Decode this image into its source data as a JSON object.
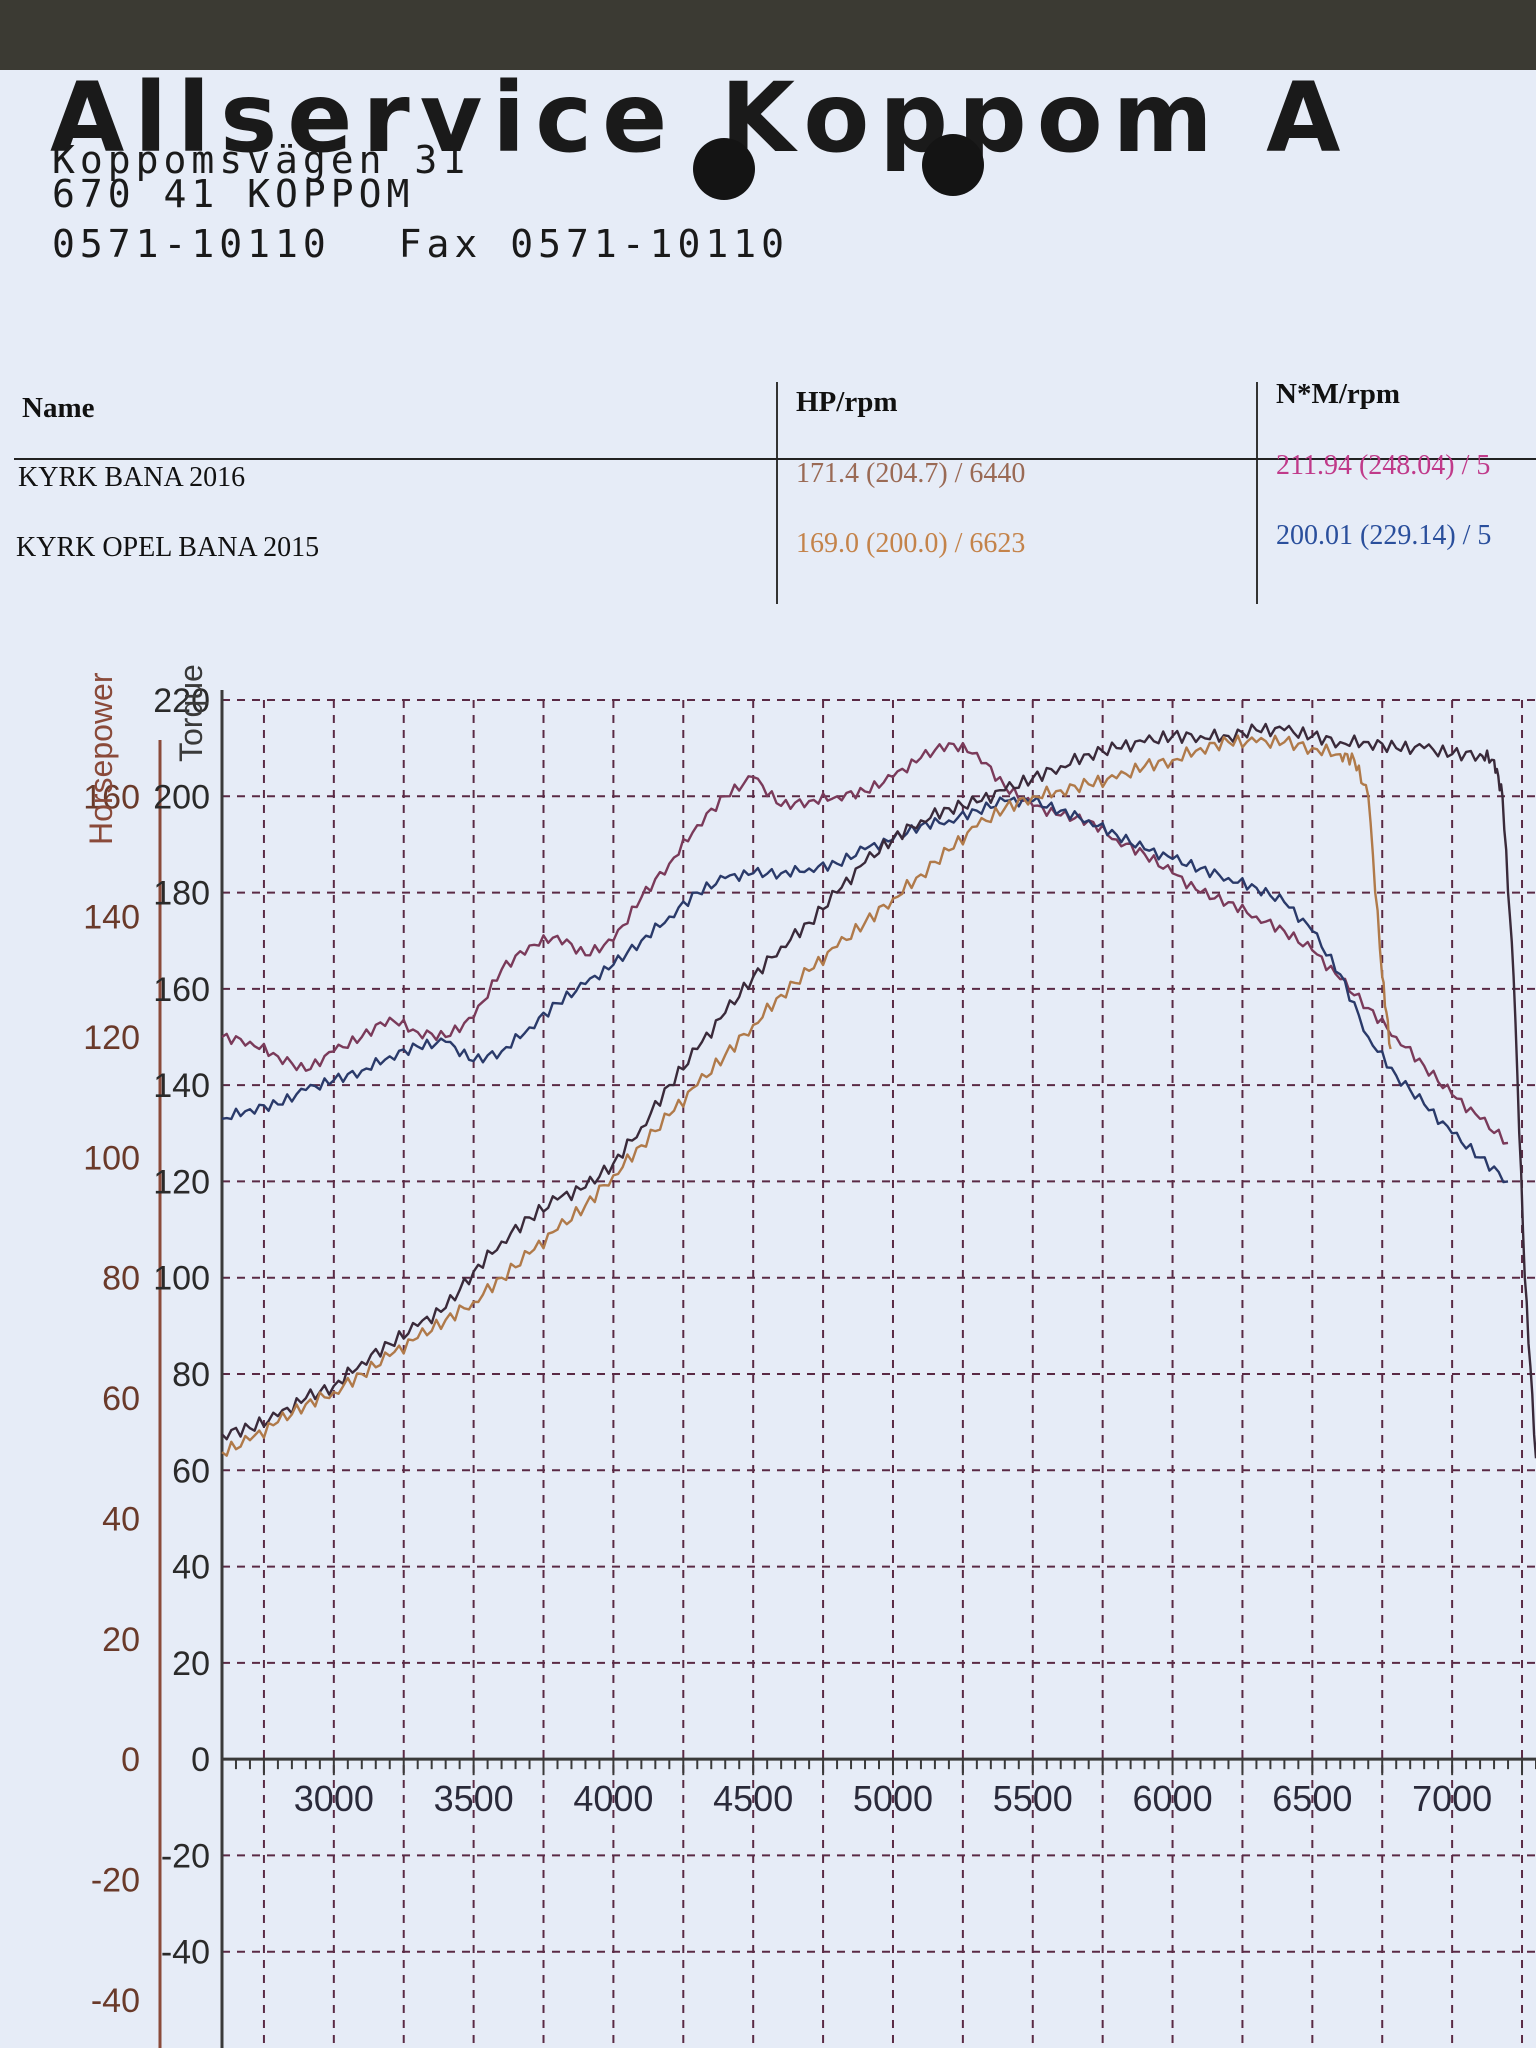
{
  "header": {
    "company": "Allservice Koppom A",
    "street": "Koppomsvägen 31",
    "postal": "670 41 KOPPOM",
    "phone": "0571-10110",
    "fax_label": "Fax",
    "fax": "0571-10110"
  },
  "results_table": {
    "columns": [
      "Name",
      "HP/rpm",
      "N*M/rpm"
    ],
    "rows": [
      {
        "name": "KYRK BANA 2016",
        "hp": "171.4 (204.7) / 6440",
        "nm": "211.94 (248.04) / 5",
        "hp_color": "#9a6a55",
        "nm_color": "#c03a8a"
      },
      {
        "name": "KYRK OPEL BANA 2015",
        "hp": "169.0 (200.0) / 6623",
        "nm": "200.01 (229.14) / 5",
        "hp_color": "#c4834a",
        "nm_color": "#2a4f9c"
      }
    ]
  },
  "chart_data": {
    "type": "line",
    "hp_axis_label": "Horsepower",
    "torque_axis_label": "Torque",
    "x_ticks": [
      3000,
      3500,
      4000,
      4500,
      5000,
      5500,
      6000,
      6500,
      7000
    ],
    "hp_ticks": [
      -40,
      -20,
      0,
      20,
      40,
      60,
      80,
      100,
      120,
      140,
      160
    ],
    "torque_ticks": [
      -40,
      -20,
      0,
      20,
      40,
      60,
      80,
      100,
      120,
      140,
      160,
      180,
      200,
      220
    ],
    "xlim": [
      2600,
      7300
    ],
    "torque_ylim": [
      -60,
      220
    ],
    "hp_ylim": [
      -48,
      176
    ],
    "grid": true,
    "colors": {
      "hp_axis": "#8a4a3a",
      "torque_axis": "#3a3a3a",
      "grid": "#5a2a45",
      "hp_2016": "#3a2a3a",
      "hp_2015": "#b07a4a",
      "tq_2016": "#7a3a5a",
      "tq_2015": "#2a3a6a"
    },
    "series": [
      {
        "key": "tq_2016",
        "axis": "torque",
        "x": [
          2600,
          2700,
          2800,
          2900,
          3000,
          3100,
          3200,
          3300,
          3400,
          3500,
          3600,
          3700,
          3800,
          3900,
          4000,
          4100,
          4200,
          4300,
          4400,
          4500,
          4600,
          4700,
          4800,
          4900,
          5000,
          5100,
          5200,
          5300,
          5400,
          5500,
          5600,
          5700,
          5800,
          5900,
          6000,
          6100,
          6200,
          6300,
          6400,
          6500,
          6600,
          6700,
          6800,
          6900,
          7000,
          7100,
          7200
        ],
        "y": [
          150,
          149,
          146,
          143,
          147,
          150,
          154,
          151,
          150,
          154,
          164,
          169,
          171,
          167,
          170,
          179,
          186,
          194,
          200,
          204,
          198,
          199,
          200,
          201,
          204,
          208,
          211,
          209,
          202,
          198,
          196,
          195,
          191,
          188,
          184,
          180,
          178,
          175,
          172,
          168,
          162,
          156,
          150,
          144,
          138,
          133,
          128
        ]
      },
      {
        "key": "tq_2015",
        "axis": "torque",
        "x": [
          2600,
          2700,
          2800,
          2900,
          3000,
          3100,
          3200,
          3300,
          3400,
          3500,
          3600,
          3700,
          3800,
          3900,
          4000,
          4100,
          4200,
          4300,
          4400,
          4500,
          4600,
          4700,
          4800,
          4900,
          5000,
          5100,
          5200,
          5300,
          5400,
          5500,
          5600,
          5700,
          5800,
          5900,
          6000,
          6100,
          6200,
          6300,
          6400,
          6500,
          6600,
          6700,
          6800,
          6900,
          7000,
          7100,
          7200
        ],
        "y": [
          133,
          135,
          136,
          139,
          141,
          143,
          146,
          148,
          149,
          145,
          147,
          152,
          157,
          161,
          165,
          170,
          175,
          180,
          183,
          184,
          184,
          185,
          186,
          189,
          191,
          194,
          195,
          197,
          199,
          199,
          197,
          195,
          192,
          189,
          187,
          185,
          183,
          181,
          178,
          172,
          163,
          150,
          142,
          136,
          130,
          125,
          120
        ]
      },
      {
        "key": "hp_2016",
        "axis": "hp",
        "x": [
          2600,
          2700,
          2800,
          2900,
          3000,
          3100,
          3200,
          3300,
          3400,
          3500,
          3600,
          3700,
          3800,
          3900,
          4000,
          4100,
          4200,
          4300,
          4400,
          4500,
          4600,
          4700,
          4800,
          4900,
          5000,
          5100,
          5200,
          5300,
          5400,
          5500,
          5600,
          5700,
          5800,
          5900,
          6000,
          6100,
          6200,
          6300,
          6400,
          6500,
          6600,
          6700,
          6800,
          6900,
          7000,
          7100,
          7150,
          7180,
          7220,
          7260,
          7300
        ],
        "y": [
          54,
          55,
          57,
          60,
          62,
          66,
          69,
          72,
          75,
          81,
          86,
          90,
          93,
          95,
          99,
          105,
          112,
          118,
          124,
          130,
          135,
          139,
          144,
          149,
          153,
          156,
          158,
          159,
          161,
          163,
          165,
          167,
          168,
          169,
          170,
          170,
          170,
          171,
          171,
          170,
          169,
          169,
          168,
          168,
          167,
          167,
          166,
          160,
          130,
          80,
          50
        ]
      },
      {
        "key": "hp_2015",
        "axis": "hp",
        "x": [
          2600,
          2700,
          2800,
          2900,
          3000,
          3100,
          3200,
          3300,
          3400,
          3500,
          3600,
          3700,
          3800,
          3900,
          4000,
          4100,
          4200,
          4300,
          4400,
          4500,
          4600,
          4700,
          4800,
          4900,
          5000,
          5100,
          5200,
          5300,
          5400,
          5500,
          5600,
          5700,
          5800,
          5900,
          6000,
          6100,
          6200,
          6300,
          6400,
          6500,
          6600,
          6650,
          6700,
          6750,
          6780
        ],
        "y": [
          51,
          53,
          56,
          59,
          61,
          64,
          67,
          70,
          73,
          76,
          80,
          84,
          88,
          92,
          97,
          102,
          107,
          112,
          117,
          122,
          127,
          131,
          135,
          139,
          143,
          147,
          151,
          155,
          158,
          160,
          161,
          162,
          163,
          165,
          166,
          168,
          169,
          169,
          169,
          168,
          167,
          166,
          160,
          130,
          118
        ]
      }
    ]
  }
}
